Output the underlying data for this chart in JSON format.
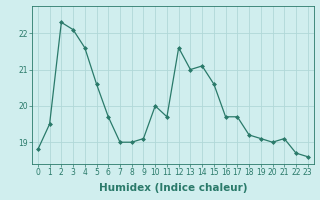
{
  "x": [
    0,
    1,
    2,
    3,
    4,
    5,
    6,
    7,
    8,
    9,
    10,
    11,
    12,
    13,
    14,
    15,
    16,
    17,
    18,
    19,
    20,
    21,
    22,
    23
  ],
  "y": [
    18.8,
    19.5,
    22.3,
    22.1,
    21.6,
    20.6,
    19.7,
    19.0,
    19.0,
    19.1,
    20.0,
    19.7,
    21.6,
    21.0,
    21.1,
    20.6,
    19.7,
    19.7,
    19.2,
    19.1,
    19.0,
    19.1,
    18.7,
    18.6
  ],
  "line_color": "#2a7a6a",
  "marker": "D",
  "marker_size": 2.0,
  "bg_color": "#d0eeee",
  "grid_color": "#b0d8d8",
  "xlabel": "Humidex (Indice chaleur)",
  "ylim": [
    18.4,
    22.75
  ],
  "xlim": [
    -0.5,
    23.5
  ],
  "yticks": [
    19,
    20,
    21,
    22
  ],
  "xticks": [
    0,
    1,
    2,
    3,
    4,
    5,
    6,
    7,
    8,
    9,
    10,
    11,
    12,
    13,
    14,
    15,
    16,
    17,
    18,
    19,
    20,
    21,
    22,
    23
  ],
  "tick_fontsize": 5.5,
  "xlabel_fontsize": 7.5,
  "linewidth": 0.9
}
